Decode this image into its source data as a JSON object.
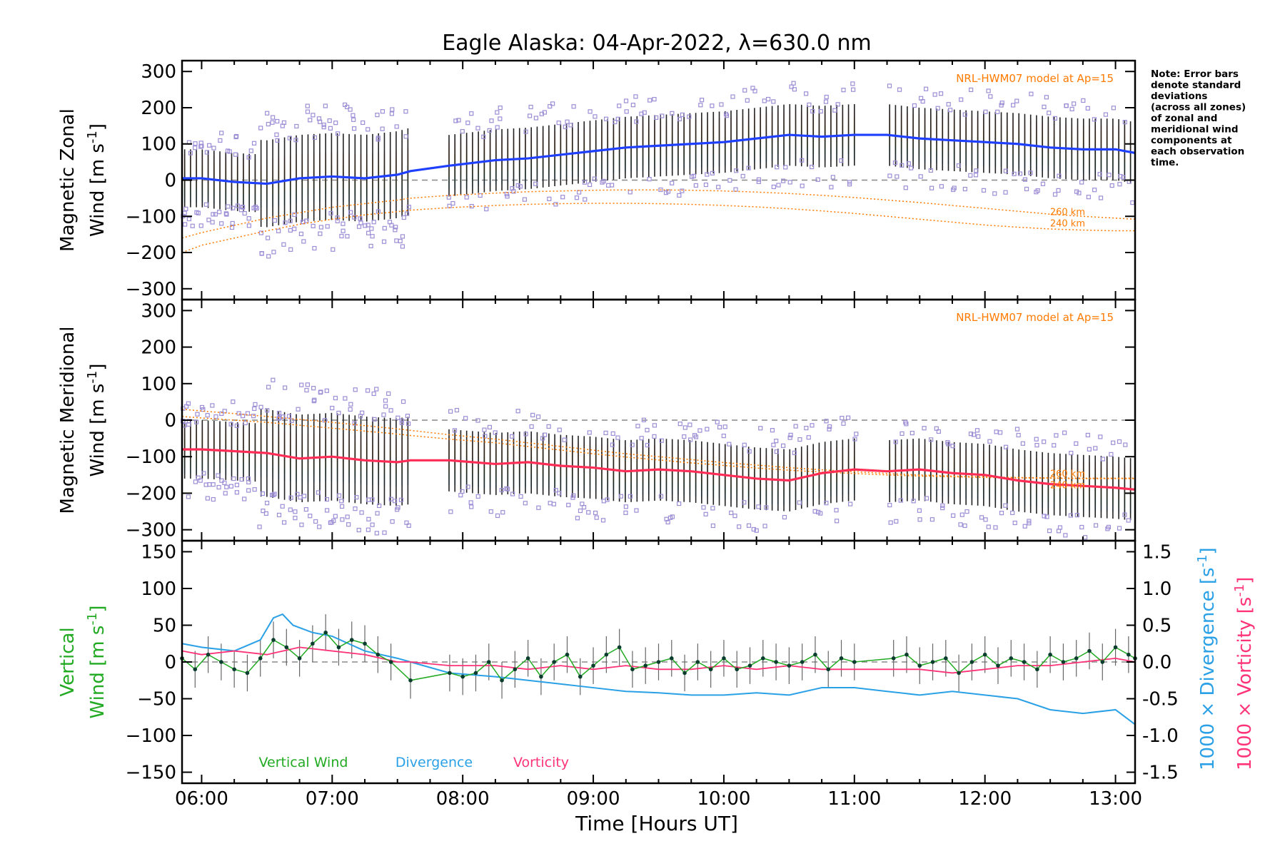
{
  "title": "Eagle Alaska: 04-Apr-2022, λ=630.0 nm",
  "xlabel": "Time [Hours UT]",
  "note": [
    "Note: Error bars",
    "denote standard",
    "deviations",
    "(across all zones)",
    "of zonal and",
    "meridional wind",
    "components at",
    "each observation",
    "time."
  ],
  "colors": {
    "zonal": "#1f3fff",
    "meridional": "#ff2d55",
    "vertical": "#22aa22",
    "divergence": "#2aa0e6",
    "vorticity": "#ff3377",
    "model": "#ff7a00",
    "outlier": "#9d8ed6",
    "errorbar": "#222222"
  },
  "chart_data": [
    {
      "type": "line",
      "panel": "zonal",
      "ylabel_line1": "Magnetic Zonal",
      "ylabel_line2": "Wind [m s",
      "ylabel_sup": "-1",
      "ylabel_close": "]",
      "ylim": [
        -330,
        330
      ],
      "yticks": [
        300,
        200,
        100,
        0,
        -100,
        -200,
        -300
      ],
      "model_label": "NRL-HWM07 model at Ap=15",
      "model_alt_labels": [
        "260 km",
        "240 km"
      ],
      "x": [
        5.85,
        6.0,
        6.25,
        6.5,
        6.75,
        7.0,
        7.25,
        7.5,
        7.6,
        7.9,
        8.25,
        8.5,
        8.75,
        9.0,
        9.25,
        9.5,
        9.75,
        10.0,
        10.25,
        10.5,
        10.75,
        11.0,
        11.25,
        11.5,
        11.75,
        12.0,
        12.25,
        12.5,
        12.75,
        13.0,
        13.15
      ],
      "series": [
        {
          "values": [
            5,
            5,
            -5,
            -10,
            5,
            10,
            5,
            15,
            25,
            40,
            55,
            60,
            70,
            80,
            90,
            95,
            100,
            105,
            115,
            125,
            120,
            125,
            125,
            115,
            110,
            105,
            100,
            90,
            85,
            85,
            75
          ]
        }
      ],
      "model_series": [
        {
          "values": [
            -160,
            -145,
            -125,
            -105,
            -90,
            -75,
            -65,
            -55,
            -50,
            -42,
            -36,
            -32,
            -30,
            -28,
            -27,
            -27,
            -28,
            -30,
            -33,
            -37,
            -42,
            -48,
            -55,
            -62,
            -70,
            -78,
            -86,
            -94,
            -100,
            -105,
            -108
          ]
        },
        {
          "values": [
            -200,
            -180,
            -160,
            -140,
            -122,
            -108,
            -96,
            -87,
            -83,
            -76,
            -70,
            -67,
            -65,
            -64,
            -64,
            -65,
            -67,
            -70,
            -74,
            -79,
            -85,
            -92,
            -100,
            -108,
            -116,
            -124,
            -130,
            -135,
            -138,
            -140,
            -140
          ]
        }
      ]
    },
    {
      "type": "line",
      "panel": "meridional",
      "ylabel_line1": "Magnetic Meridional",
      "ylabel_line2": "Wind [m s",
      "ylabel_sup": "-1",
      "ylabel_close": "]",
      "ylim": [
        -330,
        330
      ],
      "yticks": [
        300,
        200,
        100,
        0,
        -100,
        -200,
        -300
      ],
      "model_label": "NRL-HWM07 model at Ap=15",
      "model_alt_labels": [
        "260 km",
        "240 km"
      ],
      "x": [
        5.85,
        6.0,
        6.25,
        6.5,
        6.75,
        7.0,
        7.25,
        7.5,
        7.6,
        7.9,
        8.25,
        8.5,
        8.75,
        9.0,
        9.25,
        9.5,
        9.75,
        10.0,
        10.25,
        10.5,
        10.75,
        11.0,
        11.25,
        11.5,
        11.75,
        12.0,
        12.25,
        12.5,
        12.75,
        13.0,
        13.15
      ],
      "series": [
        {
          "values": [
            -80,
            -80,
            -85,
            -90,
            -105,
            -100,
            -110,
            -115,
            -110,
            -110,
            -120,
            -115,
            -125,
            -130,
            -140,
            -135,
            -140,
            -150,
            -160,
            -165,
            -145,
            -135,
            -140,
            -135,
            -145,
            -150,
            -165,
            -175,
            -180,
            -185,
            -190
          ]
        }
      ],
      "model_series": [
        {
          "values": [
            30,
            25,
            18,
            10,
            2,
            -6,
            -15,
            -24,
            -28,
            -40,
            -52,
            -62,
            -72,
            -82,
            -92,
            -100,
            -108,
            -116,
            -123,
            -130,
            -136,
            -141,
            -146,
            -150,
            -153,
            -155,
            -157,
            -158,
            -159,
            -159,
            -159
          ]
        },
        {
          "values": [
            10,
            6,
            0,
            -6,
            -14,
            -22,
            -30,
            -38,
            -42,
            -52,
            -62,
            -72,
            -82,
            -92,
            -101,
            -109,
            -117,
            -124,
            -131,
            -137,
            -142,
            -146,
            -150,
            -153,
            -155,
            -157,
            -158,
            -159,
            -160,
            -160,
            -160
          ]
        }
      ]
    },
    {
      "type": "line",
      "panel": "vertical",
      "ylabel_line1": "Vertical",
      "ylabel_line2": "Wind [m s",
      "ylabel_sup": "-1",
      "ylabel_close": "]",
      "ylim": [
        -165,
        165
      ],
      "yticks": [
        150,
        100,
        50,
        0,
        -50,
        -100,
        -150
      ],
      "y2lim": [
        -1.65,
        1.65
      ],
      "y2ticks": [
        1.5,
        1.0,
        0.5,
        0.0,
        -0.5,
        -1.0,
        -1.5
      ],
      "y2label_div": "1000 × Divergence [s",
      "y2label_vor": "1000 × Vorticity [s",
      "y2label_sup": "-1",
      "y2label_close": "]",
      "legend": [
        "Vertical Wind",
        "Divergence",
        "Vorticity"
      ],
      "vertical_x": [
        5.85,
        5.95,
        6.05,
        6.15,
        6.25,
        6.35,
        6.45,
        6.55,
        6.65,
        6.75,
        6.85,
        6.95,
        7.05,
        7.15,
        7.25,
        7.35,
        7.45,
        7.6,
        7.9,
        8.0,
        8.1,
        8.2,
        8.3,
        8.4,
        8.5,
        8.6,
        8.7,
        8.8,
        8.9,
        9.0,
        9.1,
        9.2,
        9.3,
        9.4,
        9.5,
        9.6,
        9.7,
        9.8,
        9.9,
        10.0,
        10.1,
        10.2,
        10.3,
        10.4,
        10.5,
        10.6,
        10.7,
        10.8,
        10.9,
        11.0,
        11.3,
        11.4,
        11.5,
        11.6,
        11.7,
        11.8,
        11.9,
        12.0,
        12.1,
        12.2,
        12.3,
        12.4,
        12.5,
        12.6,
        12.7,
        12.8,
        12.9,
        13.0,
        13.1,
        13.15
      ],
      "vertical_values": [
        5,
        -10,
        10,
        0,
        -10,
        -15,
        5,
        30,
        20,
        5,
        25,
        40,
        20,
        30,
        25,
        10,
        0,
        -25,
        -15,
        -20,
        -15,
        0,
        -25,
        -10,
        5,
        -20,
        0,
        10,
        -20,
        -5,
        10,
        20,
        -10,
        -5,
        0,
        5,
        -15,
        0,
        -10,
        5,
        -10,
        -5,
        5,
        0,
        -5,
        0,
        10,
        -10,
        5,
        0,
        5,
        10,
        -5,
        0,
        5,
        -15,
        0,
        10,
        -5,
        5,
        0,
        -10,
        10,
        0,
        5,
        15,
        0,
        20,
        10,
        5
      ],
      "divergence_x": [
        5.85,
        6.0,
        6.25,
        6.45,
        6.55,
        6.62,
        6.7,
        6.85,
        7.0,
        7.25,
        7.5,
        7.6,
        7.9,
        8.25,
        8.5,
        8.75,
        9.0,
        9.25,
        9.5,
        9.75,
        10.0,
        10.25,
        10.5,
        10.75,
        11.0,
        11.25,
        11.5,
        11.75,
        12.0,
        12.25,
        12.5,
        12.75,
        13.0,
        13.15
      ],
      "divergence_values": [
        0.25,
        0.2,
        0.15,
        0.3,
        0.6,
        0.65,
        0.5,
        0.4,
        0.35,
        0.15,
        0.05,
        0.0,
        -0.15,
        -0.2,
        -0.25,
        -0.3,
        -0.35,
        -0.4,
        -0.42,
        -0.45,
        -0.45,
        -0.42,
        -0.45,
        -0.35,
        -0.35,
        -0.4,
        -0.45,
        -0.4,
        -0.45,
        -0.5,
        -0.65,
        -0.7,
        -0.65,
        -0.85
      ],
      "vorticity_x": [
        5.85,
        6.0,
        6.25,
        6.5,
        6.75,
        7.0,
        7.25,
        7.5,
        7.6,
        7.9,
        8.25,
        8.5,
        8.75,
        9.0,
        9.25,
        9.5,
        9.75,
        10.0,
        10.25,
        10.5,
        10.75,
        11.0,
        11.25,
        11.5,
        11.75,
        12.0,
        12.25,
        12.5,
        12.75,
        13.0,
        13.15
      ],
      "vorticity_values": [
        0.15,
        0.1,
        0.15,
        0.1,
        0.2,
        0.15,
        0.1,
        0.0,
        0.0,
        -0.05,
        -0.05,
        -0.1,
        -0.05,
        -0.1,
        -0.05,
        -0.1,
        -0.1,
        -0.05,
        -0.1,
        -0.05,
        -0.1,
        -0.1,
        -0.1,
        -0.1,
        -0.15,
        -0.1,
        -0.05,
        -0.05,
        0.0,
        0.05,
        0.0
      ]
    }
  ],
  "xticks": [
    "06:00",
    "07:00",
    "08:00",
    "09:00",
    "10:00",
    "11:00",
    "12:00",
    "13:00"
  ],
  "xtick_values": [
    6,
    7,
    8,
    9,
    10,
    11,
    12,
    13
  ],
  "xlim": [
    5.85,
    13.15
  ]
}
